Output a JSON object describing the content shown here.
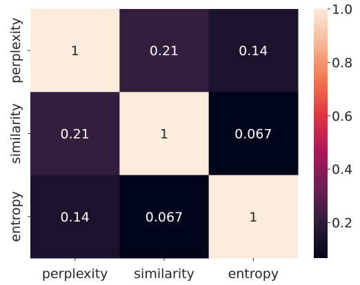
{
  "chart_data": {
    "type": "heatmap",
    "x_categories": [
      "perplexity",
      "similarity",
      "entropy"
    ],
    "y_categories": [
      "perplexity",
      "similarity",
      "entropy"
    ],
    "values": [
      [
        1,
        0.21,
        0.14
      ],
      [
        0.21,
        1,
        0.067
      ],
      [
        0.14,
        0.067,
        1
      ]
    ],
    "cell_labels": [
      [
        "1",
        "0.21",
        "0.14"
      ],
      [
        "0.21",
        "1",
        "0.067"
      ],
      [
        "0.14",
        "0.067",
        "1"
      ]
    ],
    "colorbar": {
      "min": 0.067,
      "max": 1.0,
      "ticks": [
        0.2,
        0.4,
        0.6,
        0.8,
        1.0
      ],
      "tick_labels": [
        "0.2",
        "0.4",
        "0.6",
        "0.8",
        "1.0"
      ],
      "colormap": "rocket",
      "color_stops": [
        "#03051a",
        "#2e1e3b",
        "#701f57",
        "#ae1759",
        "#e13342",
        "#f37651",
        "#f6b48f",
        "#faebdd"
      ]
    },
    "title": "",
    "xlabel": "",
    "ylabel": "",
    "grid": false,
    "legend": "colorbar-right"
  }
}
